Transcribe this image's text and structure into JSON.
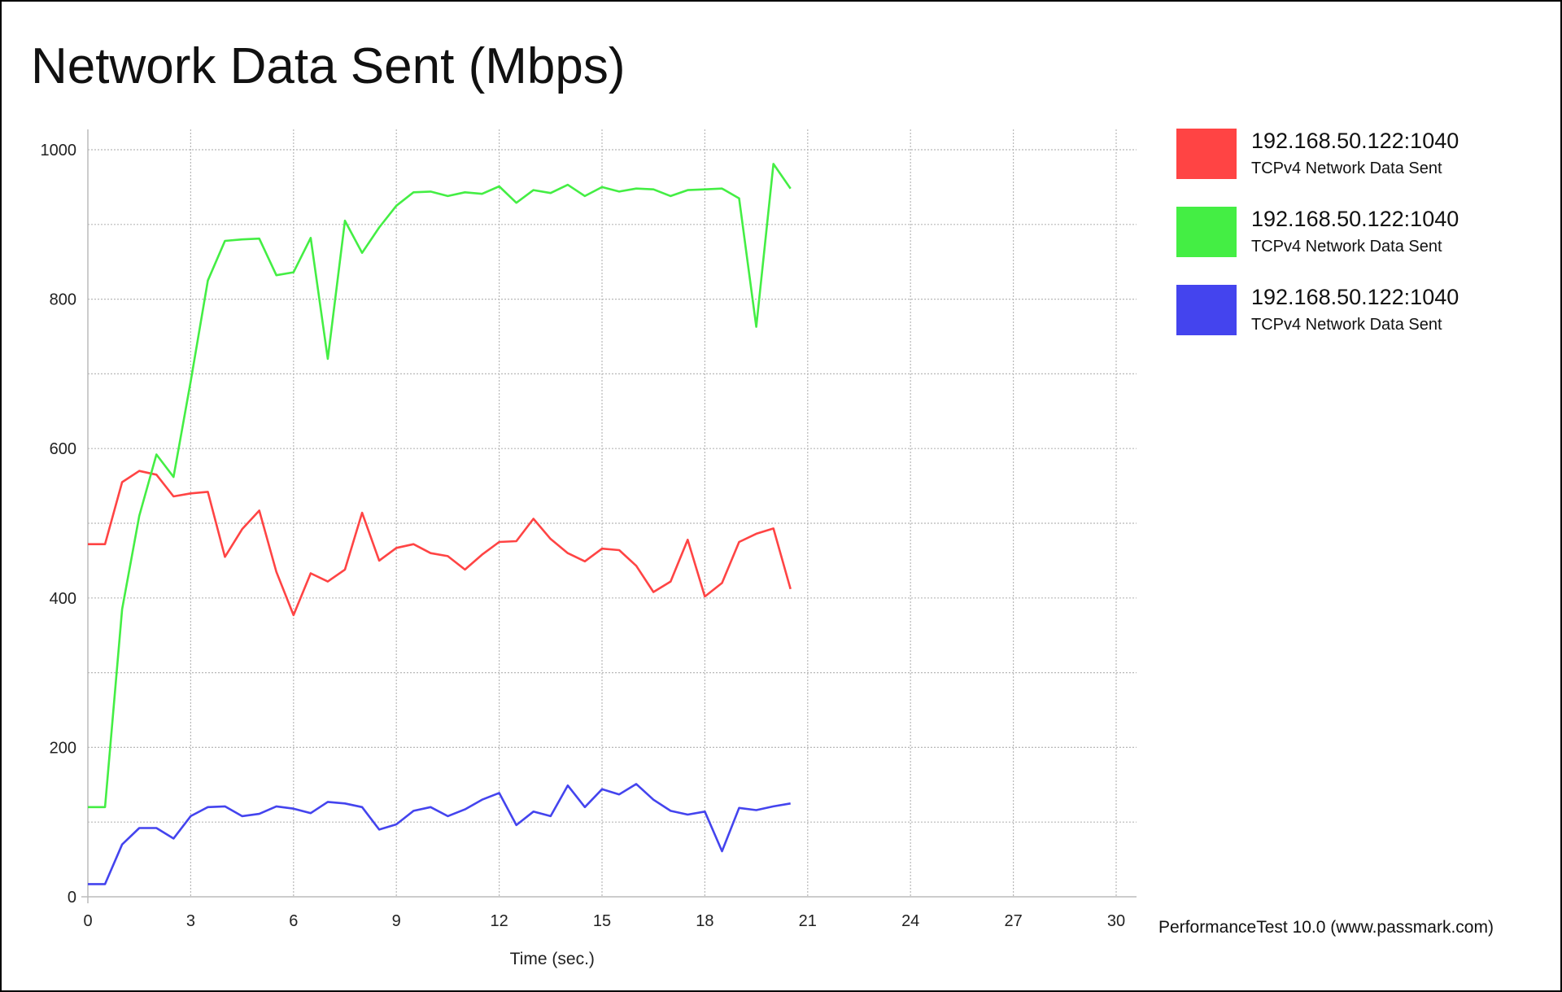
{
  "chart_data": {
    "type": "line",
    "title": "Network Data Sent (Mbps)",
    "xlabel": "Time (sec.)",
    "ylabel": "",
    "xlim": [
      0,
      30
    ],
    "ylim": [
      0,
      1000
    ],
    "x_ticks": [
      0,
      3,
      6,
      9,
      12,
      15,
      18,
      21,
      24,
      27,
      30
    ],
    "y_ticks": [
      0,
      200,
      400,
      600,
      800,
      1000
    ],
    "grid": true,
    "legend_position": "right",
    "x": [
      0,
      0.5,
      1,
      1.5,
      2,
      2.5,
      3,
      3.5,
      4,
      4.5,
      5,
      5.5,
      6,
      6.5,
      7,
      7.5,
      8,
      8.5,
      9,
      9.5,
      10,
      10.5,
      11,
      11.5,
      12,
      12.5,
      13,
      13.5,
      14,
      14.5,
      15,
      15.5,
      16,
      16.5,
      17,
      17.5,
      18,
      18.5,
      19,
      19.5,
      20,
      20.5
    ],
    "series": [
      {
        "name": "192.168.50.122:1040",
        "description": "TCPv4 Network Data Sent",
        "color": "#ff4444",
        "values": [
          472,
          472,
          555,
          570,
          565,
          536,
          540,
          542,
          455,
          492,
          517,
          435,
          377,
          433,
          422,
          438,
          514,
          450,
          467,
          472,
          460,
          456,
          438,
          458,
          475,
          476,
          506,
          479,
          460,
          449,
          466,
          464,
          443,
          408,
          422,
          478,
          402,
          420,
          475,
          486,
          493,
          412
        ]
      },
      {
        "name": "192.168.50.122:1040",
        "description": "TCPv4 Network Data Sent",
        "color": "#44ee44",
        "values": [
          120,
          120,
          385,
          510,
          592,
          562,
          690,
          825,
          878,
          880,
          881,
          832,
          836,
          882,
          720,
          905,
          862,
          896,
          925,
          943,
          944,
          938,
          943,
          941,
          951,
          929,
          946,
          942,
          953,
          938,
          950,
          944,
          948,
          947,
          938,
          946,
          947,
          948,
          935,
          763,
          981,
          948
        ]
      },
      {
        "name": "192.168.50.122:1040",
        "description": "TCPv4 Network Data Sent",
        "color": "#4444ee",
        "values": [
          17,
          17,
          70,
          92,
          92,
          78,
          108,
          120,
          121,
          108,
          111,
          121,
          118,
          112,
          127,
          125,
          120,
          90,
          97,
          115,
          120,
          108,
          117,
          130,
          139,
          96,
          114,
          108,
          149,
          120,
          144,
          137,
          151,
          130,
          115,
          110,
          114,
          61,
          119,
          116,
          121,
          125
        ]
      }
    ]
  },
  "legend": {
    "items": [
      {
        "name": "192.168.50.122:1040",
        "desc": "TCPv4 Network Data Sent",
        "color": "#ff4444"
      },
      {
        "name": "192.168.50.122:1040",
        "desc": "TCPv4 Network Data Sent",
        "color": "#44ee44"
      },
      {
        "name": "192.168.50.122:1040",
        "desc": "TCPv4 Network Data Sent",
        "color": "#4444ee"
      }
    ]
  },
  "footer": {
    "text": "PerformanceTest 10.0 (www.passmark.com)"
  }
}
